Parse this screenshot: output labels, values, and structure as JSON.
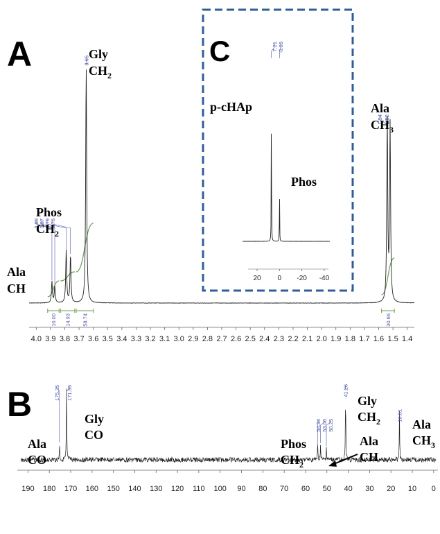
{
  "chart_data": [
    {
      "panel": "A",
      "type": "line",
      "xlim": [
        4.05,
        1.35
      ],
      "x_ticks": [
        4.0,
        3.9,
        3.8,
        3.7,
        3.6,
        3.5,
        3.4,
        3.3,
        3.2,
        3.1,
        3.0,
        2.9,
        2.8,
        2.7,
        2.6,
        2.5,
        2.4,
        2.3,
        2.2,
        2.1,
        2.0,
        1.9,
        1.8,
        1.7,
        1.6,
        1.5,
        1.4
      ],
      "peaks": [
        {
          "label": "3.89",
          "x": 3.89,
          "height": 0.09
        },
        {
          "label": "3.87",
          "x": 3.87,
          "height": 0.07
        },
        {
          "label": "3.79",
          "x": 3.79,
          "height": 0.22
        },
        {
          "label": "3.76",
          "x": 3.76,
          "height": 0.2
        },
        {
          "label": "3.65",
          "x": 3.65,
          "height": 1.0
        },
        {
          "label": "1.54",
          "x": 1.54,
          "height": 0.77
        },
        {
          "label": "1.52",
          "x": 1.52,
          "height": 0.74
        }
      ],
      "integrals": [
        {
          "label": "10.00",
          "from": 3.92,
          "to": 3.84
        },
        {
          "label": "14.93",
          "from": 3.83,
          "to": 3.73
        },
        {
          "label": "58.74",
          "from": 3.72,
          "to": 3.6
        },
        {
          "label": "30.66",
          "from": 1.58,
          "to": 1.49
        }
      ],
      "assignments": [
        {
          "line1": "Ala",
          "line2": "CH",
          "sub": ""
        },
        {
          "line1": "Phos",
          "line2": "CH",
          "sub": "2"
        },
        {
          "line1": "Gly",
          "line2": "CH",
          "sub": "2"
        },
        {
          "line1": "Ala",
          "line2": "CH",
          "sub": "3"
        }
      ]
    },
    {
      "panel": "C",
      "type": "line",
      "xlim": [
        33,
        -45
      ],
      "x_ticks": [
        20,
        0,
        -20,
        -40
      ],
      "peaks": [
        {
          "label": "7.21",
          "x": 7.21,
          "height": 1.0
        },
        {
          "label": "-0.03",
          "x": -0.03,
          "height": 0.36
        }
      ],
      "assignments": [
        {
          "line1": "p-cHAp",
          "line2": "",
          "sub": ""
        },
        {
          "line1": "Phos",
          "line2": "",
          "sub": ""
        }
      ]
    },
    {
      "panel": "B",
      "type": "line",
      "xlim": [
        195,
        -2
      ],
      "x_ticks": [
        190,
        180,
        170,
        160,
        150,
        140,
        130,
        120,
        110,
        100,
        90,
        80,
        70,
        60,
        50,
        40,
        30,
        20,
        10,
        0
      ],
      "peaks": [
        {
          "label": "175.25",
          "x": 175.25,
          "height": 0.23
        },
        {
          "label": "171.95",
          "x": 171.95,
          "height": 1.0
        },
        {
          "label": "54.34",
          "x": 54.34,
          "height": 0.2
        },
        {
          "label": "53.00",
          "x": 53.0,
          "height": 0.22
        },
        {
          "label": "50.25",
          "x": 50.25,
          "height": 0.18
        },
        {
          "label": "41.26",
          "x": 41.26,
          "height": 0.98
        },
        {
          "label": "16.01",
          "x": 16.01,
          "height": 0.7
        }
      ],
      "assignments": [
        {
          "line1": "Ala",
          "line2": "CO",
          "sub": ""
        },
        {
          "line1": "Gly",
          "line2": "CO",
          "sub": ""
        },
        {
          "line1": "Phos",
          "line2": "CH",
          "sub": "2"
        },
        {
          "line1": "Ala",
          "line2": "CH",
          "sub": ""
        },
        {
          "line1": "Gly",
          "line2": "CH",
          "sub": "2"
        },
        {
          "line1": "Ala",
          "line2": "CH",
          "sub": "3"
        }
      ]
    }
  ],
  "panels": {
    "A": "A",
    "B": "B",
    "C": "C"
  },
  "colors": {
    "spectrum": "#222222",
    "integral": "#6a9c52",
    "peak_label": "#4a55a8",
    "inset_box": "#2e5e9a"
  }
}
